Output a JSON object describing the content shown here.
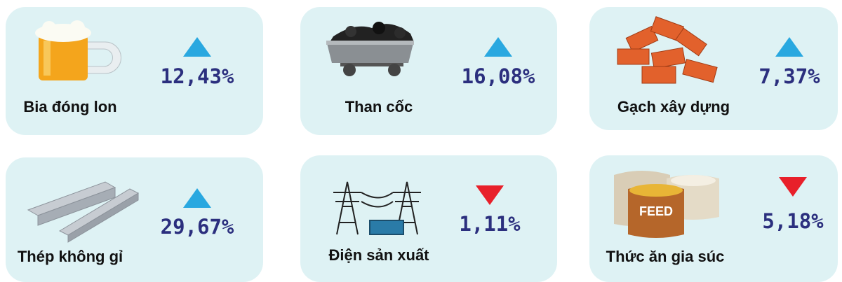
{
  "cards": [
    {
      "label": "Bia đóng lon",
      "value": "12,43%",
      "direction": "up"
    },
    {
      "label": "Than cốc",
      "value": "16,08%",
      "direction": "up"
    },
    {
      "label": "Gạch xây dựng",
      "value": "7,37%",
      "direction": "up"
    },
    {
      "label": "Thép không gỉ",
      "value": "29,67%",
      "direction": "up"
    },
    {
      "label": "Điện sản xuất",
      "value": "1,11%",
      "direction": "down"
    },
    {
      "label": "Thức ăn gia súc",
      "value": "5,18%",
      "direction": "down",
      "icon_text": "FEED"
    }
  ],
  "up_color": "#29a8e0",
  "down_color": "#e8202a"
}
